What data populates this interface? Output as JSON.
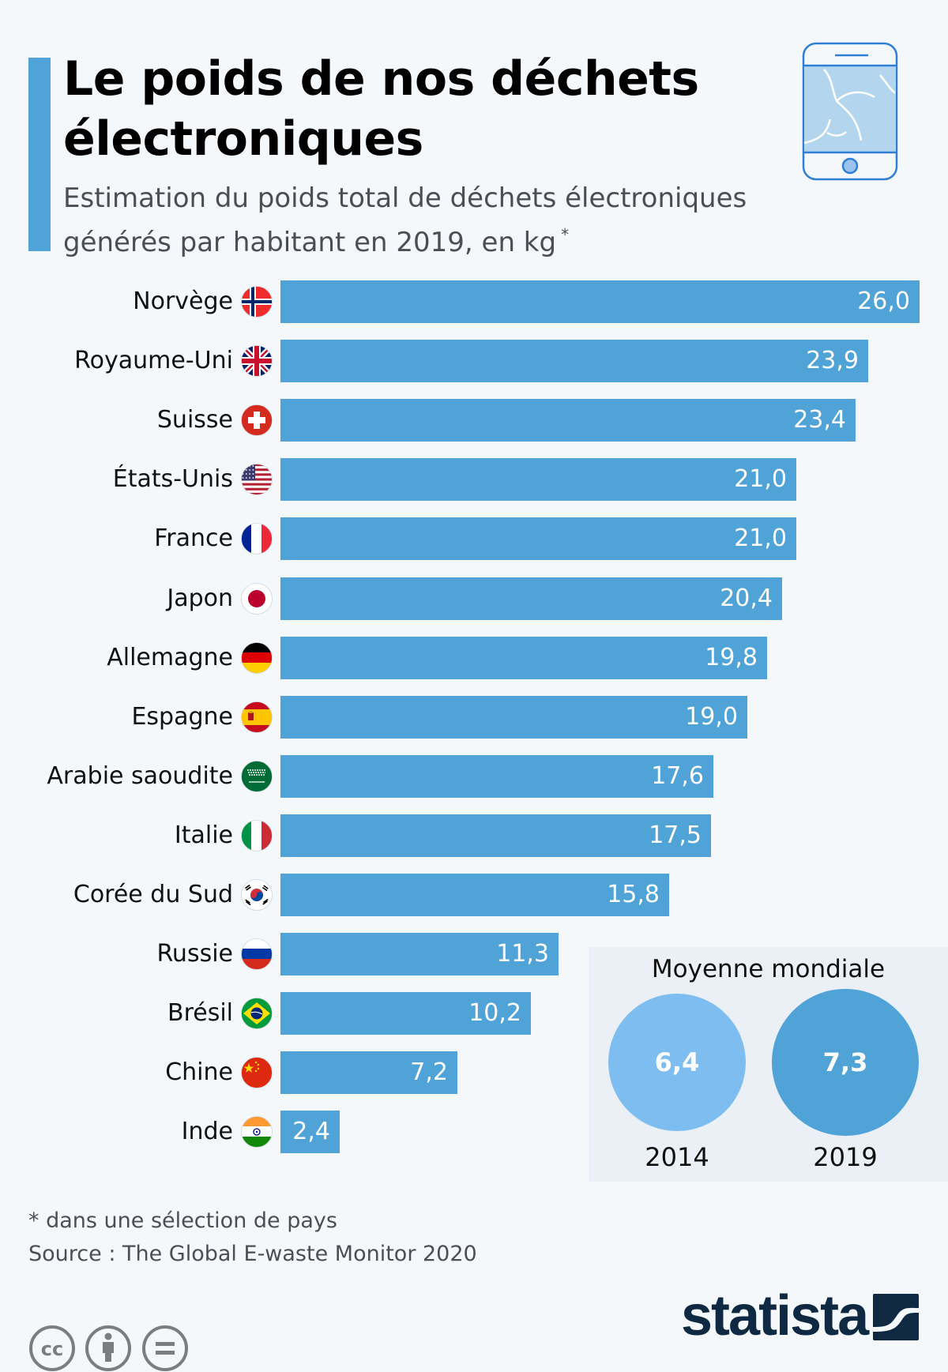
{
  "header": {
    "title": "Le poids de nos déchets électroniques",
    "subtitle": "Estimation du poids total de déchets électroniques générés par habitant en 2019, en kg",
    "subtitle_marker": "*",
    "icon": "smartphone-cracked-icon",
    "accent_color": "#4fa3d7"
  },
  "chart_data": {
    "type": "bar",
    "orientation": "horizontal",
    "title": "Le poids de nos déchets électroniques",
    "subtitle": "Estimation du poids total de déchets électroniques générés par habitant en 2019, en kg *",
    "xlabel": "",
    "ylabel": "",
    "unit": "kg",
    "xlim": [
      0,
      26
    ],
    "grid": false,
    "bar_color": "#4fa3d7",
    "categories": [
      "Norvège",
      "Royaume-Uni",
      "Suisse",
      "États-Unis",
      "France",
      "Japon",
      "Allemagne",
      "Espagne",
      "Arabie saoudite",
      "Italie",
      "Corée du Sud",
      "Russie",
      "Brésil",
      "Chine",
      "Inde"
    ],
    "values": [
      26.0,
      23.9,
      23.4,
      21.0,
      21.0,
      20.4,
      19.8,
      19.0,
      17.6,
      17.5,
      15.8,
      11.3,
      10.2,
      7.2,
      2.4
    ],
    "value_labels": [
      "26,0",
      "23,9",
      "23,4",
      "21,0",
      "21,0",
      "20,4",
      "19,8",
      "19,0",
      "17,6",
      "17,5",
      "15,8",
      "11,3",
      "10,2",
      "7,2",
      "2,4"
    ],
    "flags": [
      "norway",
      "uk",
      "switzerland",
      "usa",
      "france",
      "japan",
      "germany",
      "spain",
      "saudi-arabia",
      "italy",
      "south-korea",
      "russia",
      "brazil",
      "china",
      "india"
    ]
  },
  "world_average": {
    "title": "Moyenne mondiale",
    "items": [
      {
        "year": "2014",
        "value": 6.4,
        "label": "6,4",
        "color": "#7dbdef"
      },
      {
        "year": "2019",
        "value": 7.3,
        "label": "7,3",
        "color": "#4fa3d7"
      }
    ]
  },
  "footer": {
    "footnote": "* dans une sélection de pays",
    "source": "Source : The Global E-waste Monitor 2020",
    "license_icons": [
      "cc-icon",
      "attribution-icon",
      "no-derivatives-icon"
    ],
    "brand": "statista",
    "brand_color": "#0f2942"
  }
}
